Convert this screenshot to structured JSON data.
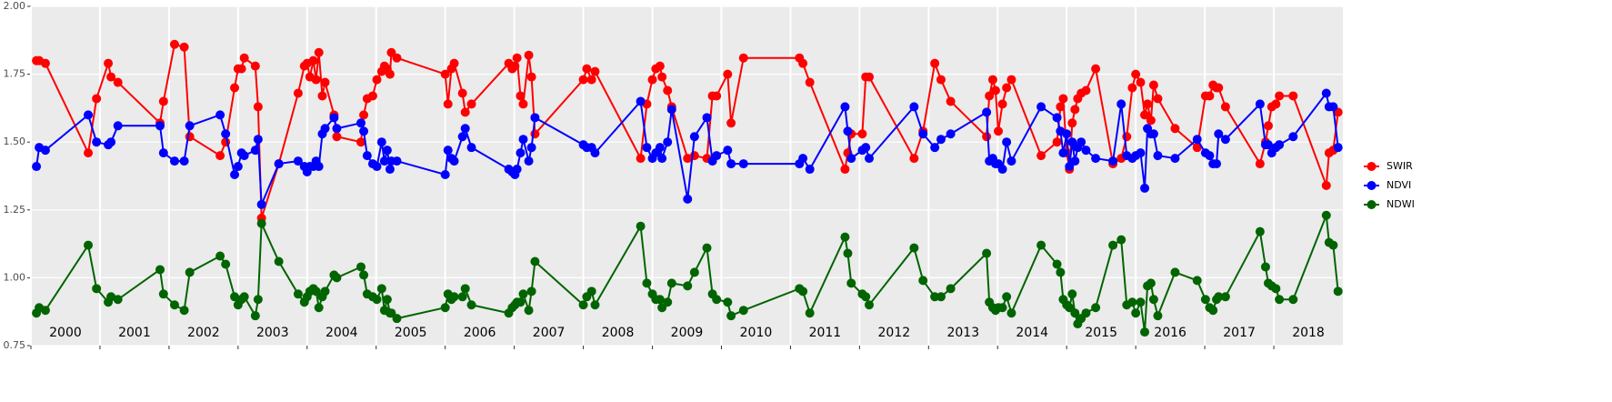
{
  "chart_data": {
    "type": "line",
    "x": [
      2000.08,
      2000.12,
      2000.21,
      2000.83,
      2000.95,
      2001.12,
      2001.16,
      2001.26,
      2001.87,
      2001.92,
      2002.08,
      2002.22,
      2002.3,
      2002.74,
      2002.82,
      2002.95,
      2003.0,
      2003.05,
      2003.09,
      2003.25,
      2003.29,
      2003.34,
      2003.59,
      2003.87,
      2003.96,
      2004.0,
      2004.04,
      2004.09,
      2004.13,
      2004.17,
      2004.22,
      2004.26,
      2004.39,
      2004.43,
      2004.78,
      2004.82,
      2004.87,
      2004.95,
      2005.01,
      2005.08,
      2005.12,
      2005.16,
      2005.2,
      2005.22,
      2005.3,
      2006.0,
      2006.04,
      2006.09,
      2006.13,
      2006.25,
      2006.29,
      2006.38,
      2006.92,
      2006.97,
      2007.01,
      2007.04,
      2007.09,
      2007.13,
      2007.21,
      2007.25,
      2007.3,
      2008.0,
      2008.05,
      2008.12,
      2008.17,
      2008.83,
      2008.92,
      2009.0,
      2009.05,
      2009.11,
      2009.14,
      2009.22,
      2009.28,
      2009.51,
      2009.61,
      2009.79,
      2009.87,
      2009.93,
      2010.09,
      2010.14,
      2010.32,
      2011.13,
      2011.18,
      2011.28,
      2011.79,
      2011.83,
      2011.88,
      2012.04,
      2012.09,
      2012.14,
      2012.79,
      2012.92,
      2013.09,
      2013.18,
      2013.32,
      2013.84,
      2013.88,
      2013.93,
      2013.97,
      2014.01,
      2014.07,
      2014.13,
      2014.2,
      2014.63,
      2014.86,
      2014.91,
      2014.95,
      2015.0,
      2015.04,
      2015.08,
      2015.12,
      2015.16,
      2015.21,
      2015.28,
      2015.42,
      2015.67,
      2015.79,
      2015.87,
      2015.95,
      2016.0,
      2016.07,
      2016.13,
      2016.17,
      2016.22,
      2016.26,
      2016.32,
      2016.57,
      2016.89,
      2017.01,
      2017.07,
      2017.12,
      2017.17,
      2017.2,
      2017.3,
      2017.8,
      2017.88,
      2017.92,
      2017.97,
      2018.03,
      2018.08,
      2018.28,
      2018.76,
      2018.8,
      2018.86,
      2018.93
    ],
    "series": [
      {
        "name": "SWIR",
        "color": "#ff0000",
        "values": [
          1.8,
          1.8,
          1.79,
          1.46,
          1.66,
          1.79,
          1.74,
          1.72,
          1.57,
          1.65,
          1.86,
          1.85,
          1.52,
          1.45,
          1.5,
          1.7,
          1.77,
          1.77,
          1.81,
          1.78,
          1.63,
          1.22,
          1.42,
          1.68,
          1.78,
          1.79,
          1.74,
          1.8,
          1.73,
          1.83,
          1.67,
          1.72,
          1.6,
          1.52,
          1.5,
          1.6,
          1.66,
          1.67,
          1.73,
          1.76,
          1.78,
          1.77,
          1.75,
          1.83,
          1.81,
          1.75,
          1.64,
          1.77,
          1.79,
          1.68,
          1.61,
          1.64,
          1.79,
          1.77,
          1.78,
          1.81,
          1.67,
          1.64,
          1.82,
          1.74,
          1.53,
          1.73,
          1.77,
          1.73,
          1.76,
          1.44,
          1.64,
          1.73,
          1.77,
          1.78,
          1.74,
          1.69,
          1.63,
          1.44,
          1.45,
          1.44,
          1.67,
          1.67,
          1.75,
          1.57,
          1.81,
          1.81,
          1.79,
          1.72,
          1.4,
          1.46,
          1.53,
          1.53,
          1.74,
          1.74,
          1.44,
          1.54,
          1.79,
          1.73,
          1.65,
          1.52,
          1.67,
          1.73,
          1.69,
          1.54,
          1.64,
          1.7,
          1.73,
          1.45,
          1.5,
          1.63,
          1.66,
          1.46,
          1.4,
          1.57,
          1.62,
          1.66,
          1.68,
          1.69,
          1.77,
          1.42,
          1.44,
          1.52,
          1.7,
          1.75,
          1.72,
          1.6,
          1.64,
          1.58,
          1.71,
          1.66,
          1.55,
          1.48,
          1.67,
          1.67,
          1.71,
          1.7,
          1.7,
          1.63,
          1.42,
          1.5,
          1.56,
          1.63,
          1.64,
          1.67,
          1.67,
          1.34,
          1.46,
          1.47,
          1.61
        ]
      },
      {
        "name": "NDVI",
        "color": "#0000ff",
        "values": [
          1.41,
          1.48,
          1.47,
          1.6,
          1.5,
          1.49,
          1.5,
          1.56,
          1.56,
          1.46,
          1.43,
          1.43,
          1.56,
          1.6,
          1.53,
          1.38,
          1.41,
          1.46,
          1.45,
          1.47,
          1.51,
          1.27,
          1.42,
          1.43,
          1.41,
          1.39,
          1.41,
          1.41,
          1.43,
          1.41,
          1.53,
          1.55,
          1.59,
          1.55,
          1.57,
          1.54,
          1.45,
          1.42,
          1.41,
          1.5,
          1.43,
          1.47,
          1.4,
          1.43,
          1.43,
          1.38,
          1.47,
          1.44,
          1.43,
          1.52,
          1.55,
          1.48,
          1.4,
          1.39,
          1.38,
          1.4,
          1.46,
          1.51,
          1.43,
          1.48,
          1.59,
          1.49,
          1.48,
          1.48,
          1.46,
          1.65,
          1.48,
          1.44,
          1.46,
          1.48,
          1.44,
          1.5,
          1.62,
          1.29,
          1.52,
          1.59,
          1.43,
          1.45,
          1.47,
          1.42,
          1.42,
          1.42,
          1.44,
          1.4,
          1.63,
          1.54,
          1.44,
          1.47,
          1.48,
          1.44,
          1.63,
          1.53,
          1.48,
          1.51,
          1.53,
          1.61,
          1.43,
          1.44,
          1.42,
          1.42,
          1.4,
          1.5,
          1.43,
          1.63,
          1.59,
          1.54,
          1.46,
          1.53,
          1.41,
          1.5,
          1.43,
          1.48,
          1.5,
          1.47,
          1.44,
          1.43,
          1.64,
          1.45,
          1.44,
          1.45,
          1.46,
          1.33,
          1.55,
          1.53,
          1.53,
          1.45,
          1.44,
          1.51,
          1.46,
          1.45,
          1.42,
          1.42,
          1.53,
          1.51,
          1.64,
          1.49,
          1.49,
          1.46,
          1.48,
          1.49,
          1.52,
          1.68,
          1.63,
          1.63,
          1.48
        ]
      },
      {
        "name": "NDWI",
        "color": "#006400",
        "values": [
          0.87,
          0.89,
          0.88,
          1.12,
          0.96,
          0.91,
          0.93,
          0.92,
          1.03,
          0.94,
          0.9,
          0.88,
          1.02,
          1.08,
          1.05,
          0.93,
          0.9,
          0.92,
          0.93,
          0.86,
          0.92,
          1.2,
          1.06,
          0.94,
          0.91,
          0.93,
          0.95,
          0.96,
          0.95,
          0.89,
          0.93,
          0.95,
          1.01,
          1.0,
          1.04,
          1.01,
          0.94,
          0.93,
          0.92,
          0.96,
          0.88,
          0.92,
          0.87,
          0.87,
          0.85,
          0.89,
          0.94,
          0.92,
          0.93,
          0.93,
          0.96,
          0.9,
          0.87,
          0.89,
          0.9,
          0.91,
          0.91,
          0.94,
          0.88,
          0.95,
          1.06,
          0.9,
          0.93,
          0.95,
          0.9,
          1.19,
          0.98,
          0.94,
          0.92,
          0.92,
          0.89,
          0.91,
          0.98,
          0.97,
          1.02,
          1.11,
          0.94,
          0.92,
          0.91,
          0.86,
          0.88,
          0.96,
          0.95,
          0.87,
          1.15,
          1.09,
          0.98,
          0.94,
          0.93,
          0.9,
          1.11,
          0.99,
          0.93,
          0.93,
          0.96,
          1.09,
          0.91,
          0.89,
          0.88,
          0.89,
          0.89,
          0.93,
          0.87,
          1.12,
          1.05,
          1.02,
          0.92,
          0.9,
          0.89,
          0.94,
          0.87,
          0.83,
          0.85,
          0.87,
          0.89,
          1.12,
          1.14,
          0.9,
          0.91,
          0.87,
          0.91,
          0.8,
          0.97,
          0.98,
          0.92,
          0.86,
          1.02,
          0.99,
          0.92,
          0.89,
          0.88,
          0.92,
          0.93,
          0.93,
          1.17,
          1.04,
          0.98,
          0.97,
          0.96,
          0.92,
          0.92,
          1.23,
          1.13,
          1.12,
          0.95
        ]
      }
    ],
    "xlim": [
      2000,
      2019
    ],
    "xticks": [
      2000,
      2001,
      2002,
      2003,
      2004,
      2005,
      2006,
      2007,
      2008,
      2009,
      2010,
      2011,
      2012,
      2013,
      2014,
      2015,
      2016,
      2017,
      2018
    ],
    "ylim": [
      0.75,
      2.0
    ],
    "yticks": [
      {
        "value": 0.75,
        "label": "0.75"
      },
      {
        "value": 1.0,
        "label": "1.00"
      },
      {
        "value": 1.25,
        "label": "1.25"
      },
      {
        "value": 1.5,
        "label": "1.50"
      },
      {
        "value": 1.75,
        "label": "1.75"
      },
      {
        "value": 2.0,
        "label": "2.00"
      }
    ],
    "grid": true,
    "legend": "right"
  }
}
